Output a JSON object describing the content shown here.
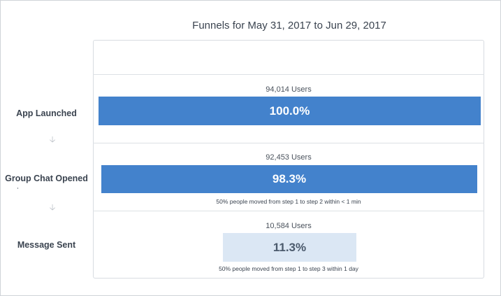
{
  "title": "Funnels for May 31, 2017 to Jun 29, 2017",
  "chart_data": {
    "type": "bar",
    "orientation": "horizontal-funnel",
    "categories": [
      "App Launched",
      "Group Chat Opened",
      "Message Sent"
    ],
    "values": [
      94014,
      92453,
      10584
    ],
    "count_labels": [
      "94,014 Users",
      "92,453 Users",
      "10,584 Users"
    ],
    "percents": [
      100.0,
      98.3,
      11.3
    ],
    "percent_labels": [
      "100.0%",
      "98.3%",
      "11.3%"
    ],
    "notes": [
      "",
      "50% people moved from step 1 to step 2 within < 1 min",
      "50% people moved from step 1 to step 3 within 1 day"
    ],
    "xlim": [
      0,
      100
    ],
    "colors": {
      "primary_bar": "#4382cc",
      "light_bar": "#dbe7f4"
    }
  }
}
